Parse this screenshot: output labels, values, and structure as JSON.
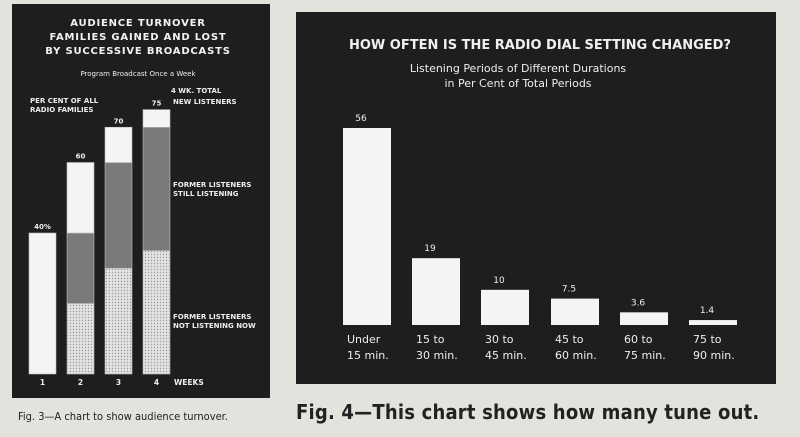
{
  "chart_data": [
    {
      "type": "bar",
      "title": "AUDIENCE TURNOVER\nFAMILIES GAINED AND LOST\nBY SUCCESSIVE BROADCASTS",
      "subtitle": "Program Broadcast Once a Week",
      "ylabel": "PER CENT OF ALL RADIO FAMILIES",
      "xlabel": "WEEKS",
      "total_label": "4 WK. TOTAL",
      "categories": [
        "1",
        "2",
        "3",
        "4"
      ],
      "totals": [
        40,
        60,
        70,
        75
      ],
      "total_labels": [
        "40%",
        "60",
        "70",
        "75"
      ],
      "ylim": [
        0,
        80
      ],
      "stacked": true,
      "series": [
        {
          "name": "FORMER LISTENERS NOT LISTENING NOW",
          "values": [
            0,
            20,
            30,
            35
          ],
          "color": "#d8d8d8"
        },
        {
          "name": "FORMER LISTENERS STILL LISTENING",
          "values": [
            0,
            20,
            30,
            35
          ],
          "color": "#7a7a7a"
        },
        {
          "name": "NEW LISTENERS",
          "values": [
            40,
            20,
            10,
            5
          ],
          "color": "#f4f4f4"
        }
      ],
      "caption": "Fig. 3—A chart to show audience turnover."
    },
    {
      "type": "bar",
      "title": "HOW OFTEN IS THE RADIO DIAL SETTING CHANGED?",
      "subtitle": "Listening Periods of Different Durations\nin Per Cent of Total Periods",
      "categories": [
        "Under 15 min.",
        "15 to 30 min.",
        "30 to 45 min.",
        "45 to 60 min.",
        "60 to 75 min.",
        "75 to 90 min."
      ],
      "values": [
        56,
        19,
        10,
        7.5,
        3.6,
        1.4
      ],
      "value_labels": [
        "56",
        "19",
        "10",
        "7.5",
        "3.6",
        "1.4"
      ],
      "ylim": [
        0,
        60
      ],
      "bar_color": "#f4f4f4",
      "caption": "Fig. 4—This chart shows how many tune out."
    }
  ]
}
